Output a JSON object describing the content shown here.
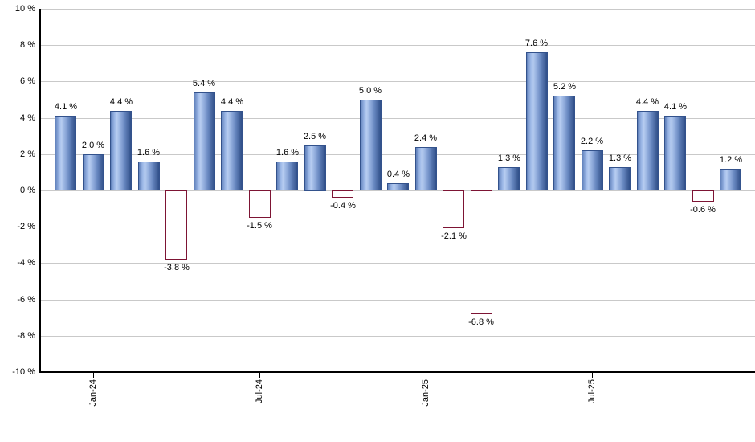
{
  "chart_data": {
    "type": "bar",
    "title": "",
    "xlabel": "",
    "ylabel": "",
    "unit": "%",
    "values": [
      4.1,
      2.0,
      4.4,
      1.6,
      -3.8,
      5.4,
      4.4,
      -1.5,
      1.6,
      2.5,
      -0.4,
      5.0,
      0.4,
      2.4,
      -2.1,
      -6.8,
      1.3,
      7.6,
      5.2,
      2.2,
      1.3,
      4.4,
      4.1,
      -0.6,
      1.2
    ],
    "bar_labels": [
      "4.1 %",
      "2.0 %",
      "4.4 %",
      "1.6 %",
      "-3.8 %",
      "5.4 %",
      "4.4 %",
      "-1.5 %",
      "1.6 %",
      "2.5 %",
      "-0.4 %",
      "5.0 %",
      "0.4 %",
      "2.4 %",
      "-2.1 %",
      "-6.8 %",
      "1.3 %",
      "7.6 %",
      "5.2 %",
      "2.2 %",
      "1.3 %",
      "4.4 %",
      "4.1 %",
      "-0.6 %",
      "1.2 %"
    ],
    "y_tick_values": [
      10,
      8,
      6,
      4,
      2,
      0,
      -2,
      -4,
      -6,
      -8,
      -10
    ],
    "y_tick_labels": [
      "10 %",
      "8 %",
      "6 %",
      "4 %",
      "2 %",
      "0 %",
      "-2 %",
      "-4 %",
      "-6 %",
      "-8 %",
      "-10 %"
    ],
    "ylim": [
      -10,
      10
    ],
    "x_tick_labels": [
      {
        "bar_index": 1,
        "label": "Jan-24"
      },
      {
        "bar_index": 7,
        "label": "Jul-24"
      },
      {
        "bar_index": 13,
        "label": "Jan-25"
      },
      {
        "bar_index": 19,
        "label": "Jul-25"
      }
    ],
    "grid": true,
    "legend": false,
    "colors": {
      "positive_bar": "#7b9bd2",
      "negative_bar": "#c0395f",
      "gridline": "#c9c9c9",
      "axis": "#000000",
      "label_text": "#000000",
      "background": "#ffffff"
    }
  }
}
